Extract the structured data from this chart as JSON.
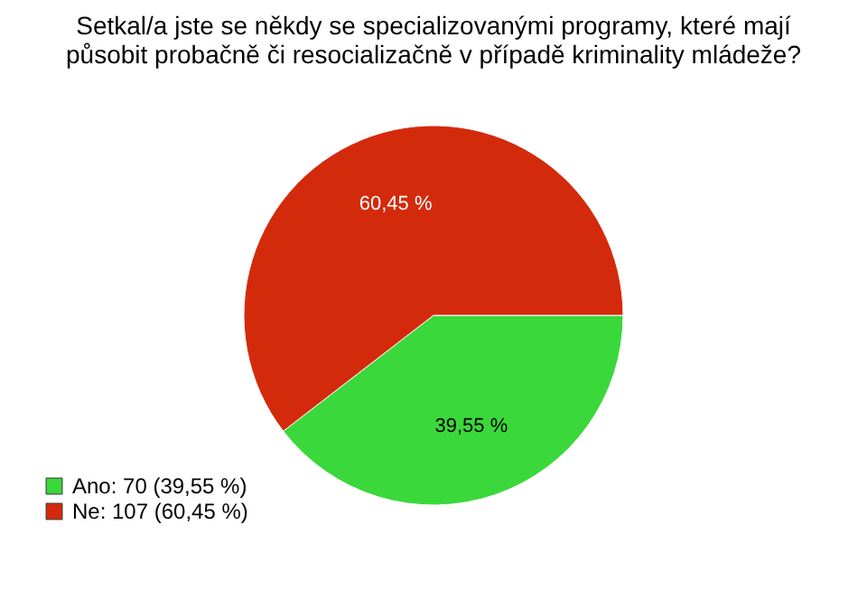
{
  "chart_data": {
    "type": "pie",
    "title": "Setkal/a jste se někdy se specializovanými programy, které mají\npůsobit probačně či resocializačně v případě kriminality mládeže?",
    "categories": [
      "Ano: 70 (39,55 %)",
      "Ne: 107 (60,45 %)"
    ],
    "values": [
      39.55,
      60.45
    ],
    "value_labels": [
      "39,55 %",
      "60,45 %"
    ],
    "colors": [
      "#3ad83a",
      "#d42a0c"
    ],
    "legend": "bottom left"
  }
}
